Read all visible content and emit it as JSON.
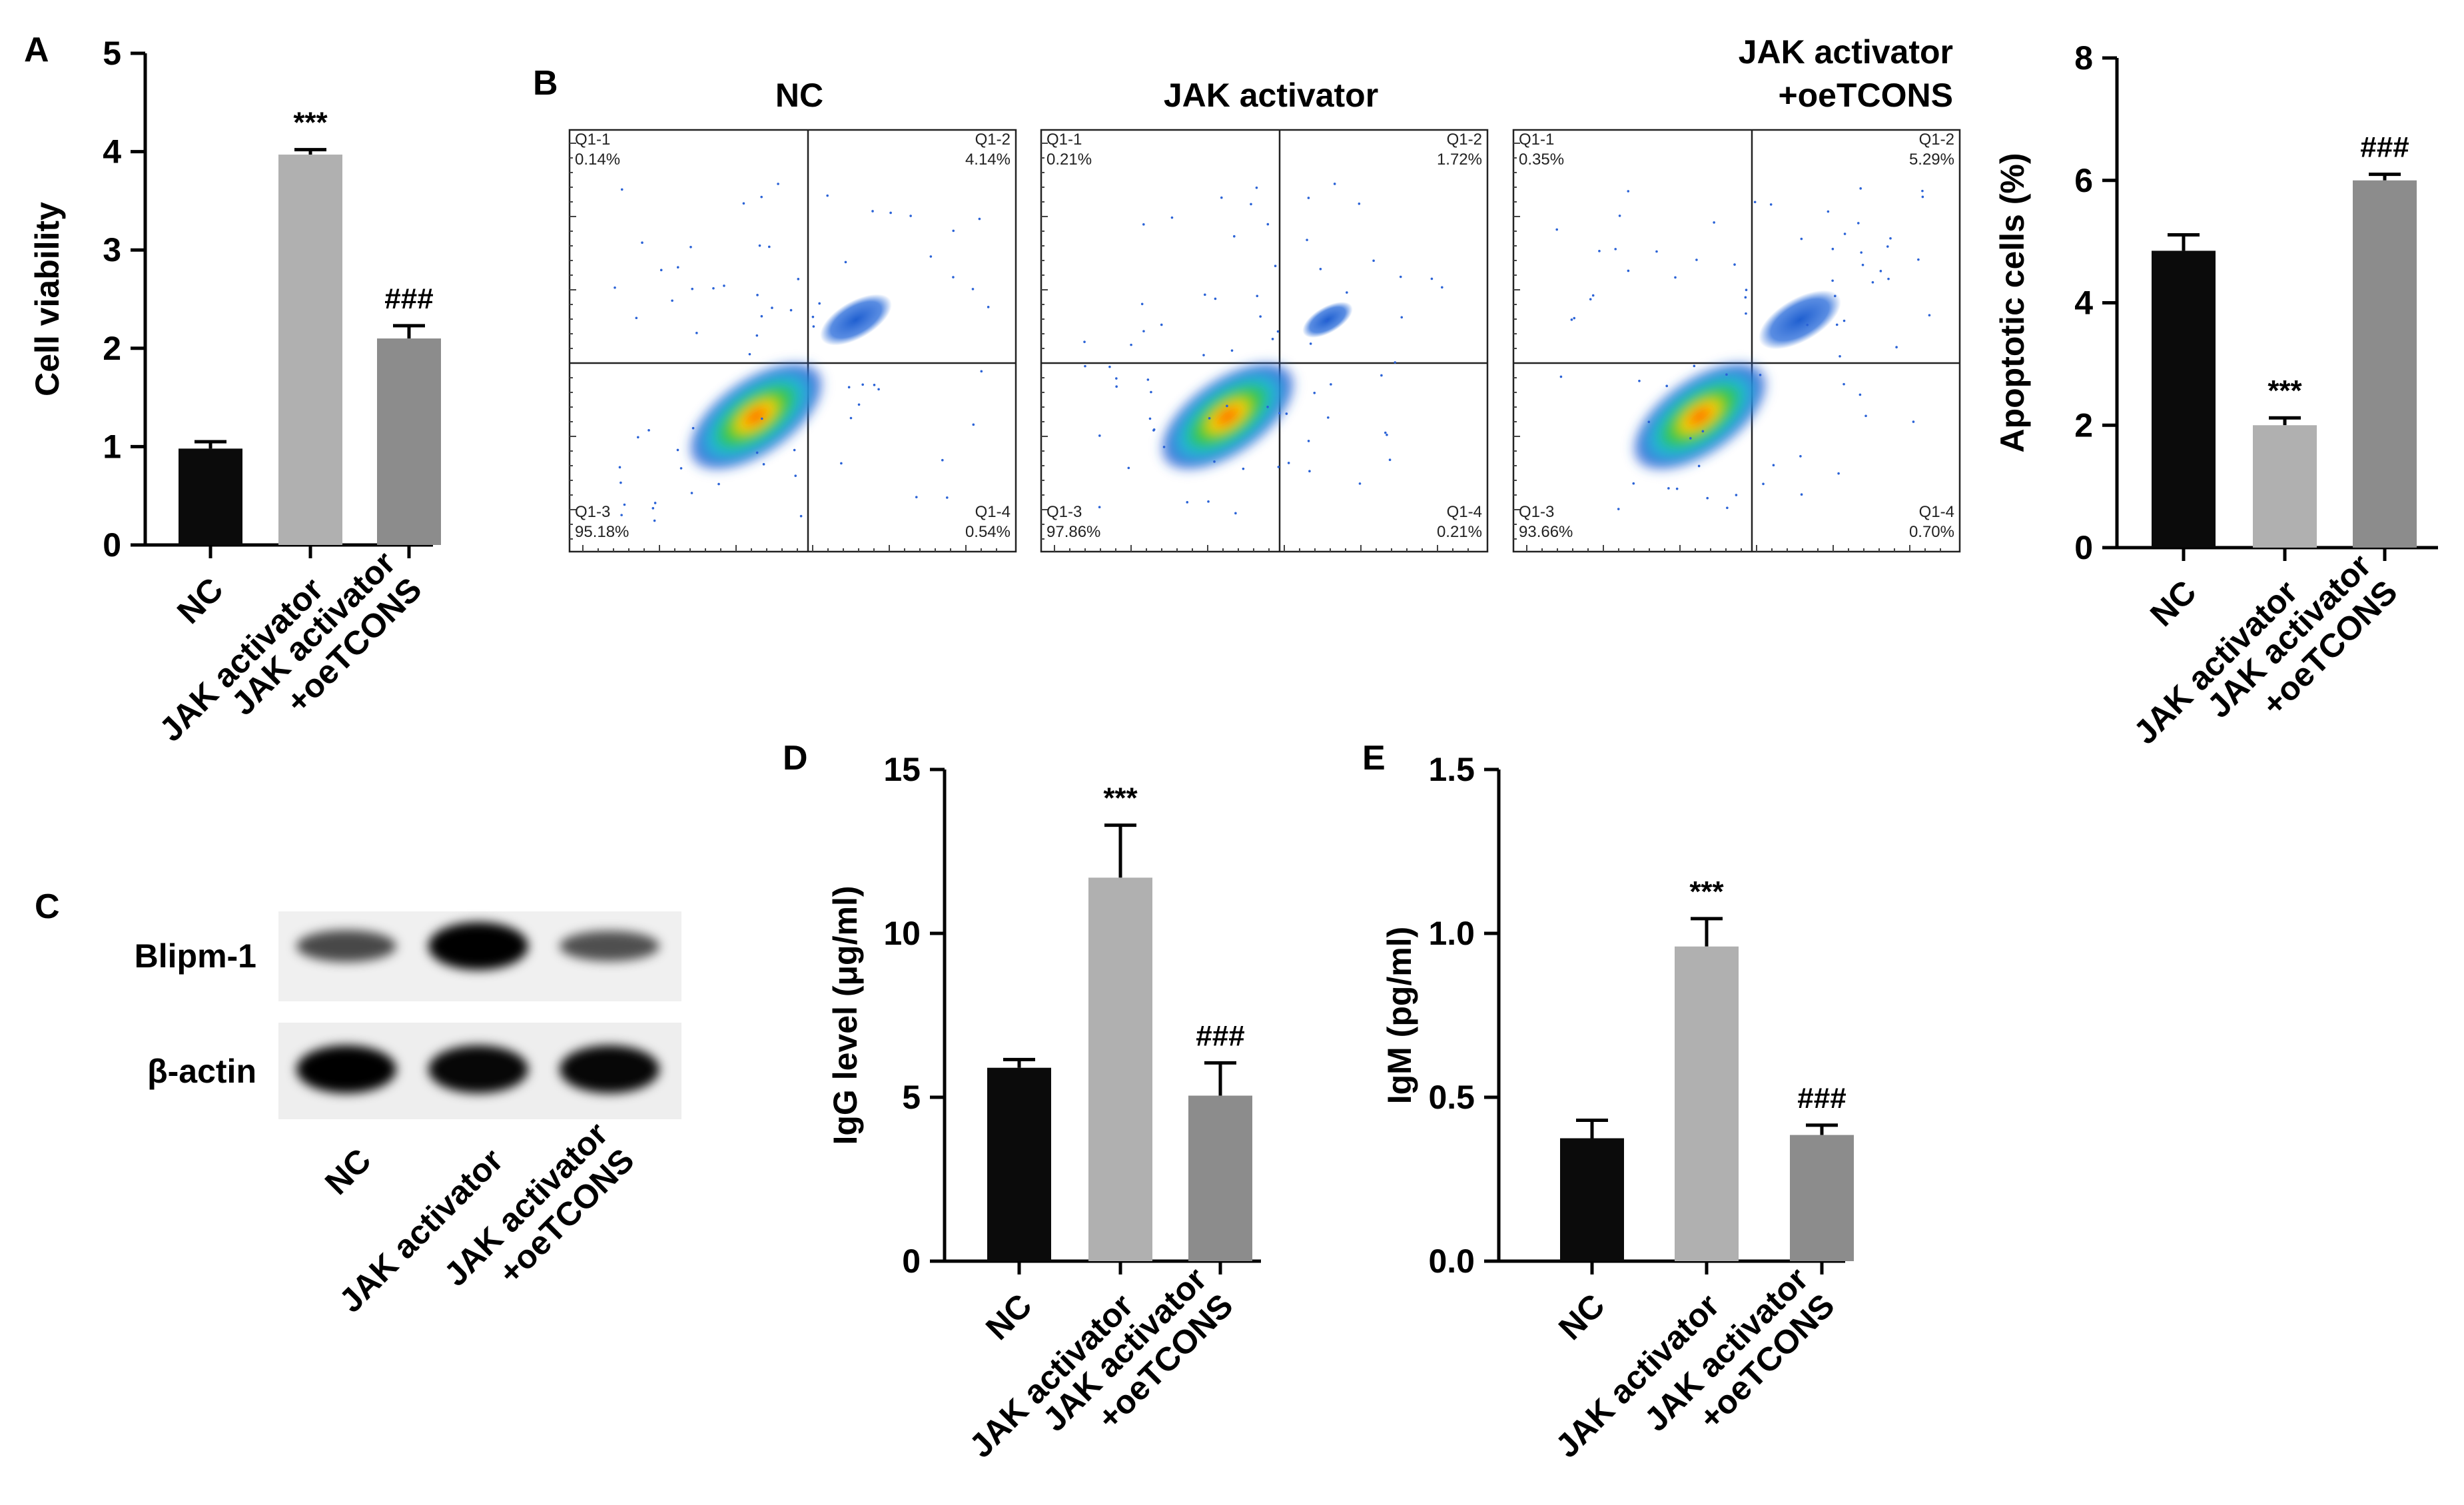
{
  "panel_letters": {
    "A": "A",
    "B": "B",
    "C": "C",
    "D": "D",
    "E": "E"
  },
  "colors": {
    "nc": "#0b0b0b",
    "jak": "#b0b0b0",
    "combo": "#8c8c8c"
  },
  "categories": [
    "NC",
    "JAK activator",
    "JAK activator\n+oeTCONS"
  ],
  "chart_data": [
    {
      "id": "A",
      "type": "bar",
      "categories": [
        "NC",
        "JAK activator",
        "JAK activator +oeTCONS"
      ],
      "values": [
        0.98,
        3.97,
        2.1
      ],
      "errors": [
        0.07,
        0.05,
        0.13
      ],
      "marks": [
        "",
        "***",
        "###"
      ],
      "ylabel": "Cell viability",
      "ylim": [
        0,
        5
      ],
      "yticks": [
        "0",
        "1",
        "2",
        "3",
        "4",
        "5"
      ]
    },
    {
      "id": "B-bar",
      "type": "bar",
      "categories": [
        "NC",
        "JAK activator",
        "JAK activator +oeTCONS"
      ],
      "values": [
        4.85,
        2.0,
        6.0
      ],
      "errors": [
        0.26,
        0.12,
        0.1
      ],
      "marks": [
        "",
        "***",
        "###"
      ],
      "ylabel": "Apoptotic cells (%)",
      "ylim": [
        0,
        8
      ],
      "yticks": [
        "0",
        "2",
        "4",
        "6",
        "8"
      ]
    },
    {
      "id": "D",
      "type": "bar",
      "categories": [
        "NC",
        "JAK activator",
        "JAK activator +oeTCONS"
      ],
      "values": [
        5.9,
        11.7,
        5.05
      ],
      "errors": [
        0.25,
        1.6,
        1.0
      ],
      "marks": [
        "",
        "***",
        "###"
      ],
      "ylabel": "IgG level (μg/ml)",
      "ylim": [
        0,
        15
      ],
      "yticks": [
        "0",
        "5",
        "10",
        "15"
      ]
    },
    {
      "id": "E",
      "type": "bar",
      "categories": [
        "NC",
        "JAK activator",
        "JAK activator +oeTCONS"
      ],
      "values": [
        0.375,
        0.96,
        0.385
      ],
      "errors": [
        0.055,
        0.085,
        0.03
      ],
      "marks": [
        "",
        "***",
        "###"
      ],
      "ylabel": "IgM (pg/ml)",
      "ylim": [
        0,
        1.5
      ],
      "yticks": [
        "0.0",
        "0.5",
        "1.0",
        "1.5"
      ]
    },
    {
      "id": "B-flow",
      "type": "scatter",
      "panels": [
        {
          "title": [
            "NC"
          ],
          "q1": "0.14%",
          "q2": "4.14%",
          "q3": "95.18%",
          "q4": "0.54%"
        },
        {
          "title": [
            "JAK activator"
          ],
          "q1": "0.21%",
          "q2": "1.72%",
          "q3": "97.86%",
          "q4": "0.21%"
        },
        {
          "title": [
            "JAK activator",
            "+oeTCONS"
          ],
          "q1": "0.35%",
          "q2": "5.29%",
          "q3": "93.66%",
          "q4": "0.70%"
        }
      ],
      "quadrant_names": [
        "Q1-1",
        "Q1-2",
        "Q1-3",
        "Q1-4"
      ]
    },
    {
      "id": "C",
      "type": "table",
      "rows": [
        "Blipm-1",
        "β-actin"
      ],
      "band_intensity": {
        "Blipm-1": [
          0.45,
          1.0,
          0.4
        ],
        "β-actin": [
          1.0,
          0.95,
          0.95
        ]
      }
    }
  ]
}
